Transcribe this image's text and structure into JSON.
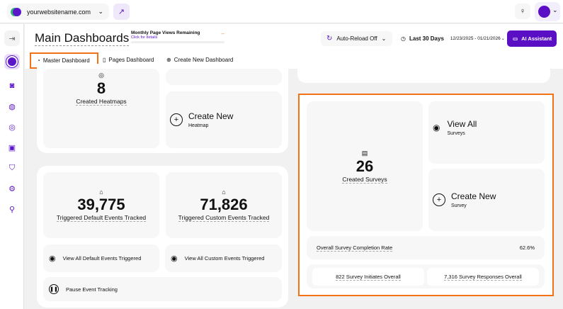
{
  "topbar": {
    "site": "yourwebsitename.com"
  },
  "header": {
    "title": "Main Dashboards",
    "pageviews_label": "Monthly Page Views Remaining",
    "pageviews_link": "Click for details",
    "pageviews_value": "--",
    "auto_reload": "Auto-Reload Off",
    "range": "Last 30 Days",
    "dates": "12/23/2025 - 01/21/2026",
    "ai": "AI Assistant"
  },
  "tabs": [
    {
      "label": "Master Dashboard"
    },
    {
      "label": "Pages Dashboard"
    },
    {
      "label": "Create New Dashboard"
    }
  ],
  "heatmaps": {
    "count": "8",
    "label": "Created Heatmaps",
    "create_title": "Create New",
    "create_sub": "Heatmap"
  },
  "events": {
    "default_count": "39,775",
    "default_label": "Triggered Default Events Tracked",
    "custom_count": "71,826",
    "custom_label": "Triggered Custom Events Tracked",
    "view_default": "View All Default Events Triggered",
    "view_custom": "View All Custom Events Triggered",
    "pause": "Pause Event Tracking"
  },
  "surveys": {
    "count": "26",
    "label": "Created Surveys",
    "view_title": "View All",
    "view_sub": "Surveys",
    "create_title": "Create New",
    "create_sub": "Survey",
    "completion_label": "Overall Survey Completion Rate",
    "completion_value": "62.6%",
    "initiates": "822 Survey Initiates Overall",
    "responses": "7,316 Survey Responses Overall"
  },
  "colors": {
    "accent": "#5b16c9",
    "highlight": "#f47216"
  }
}
